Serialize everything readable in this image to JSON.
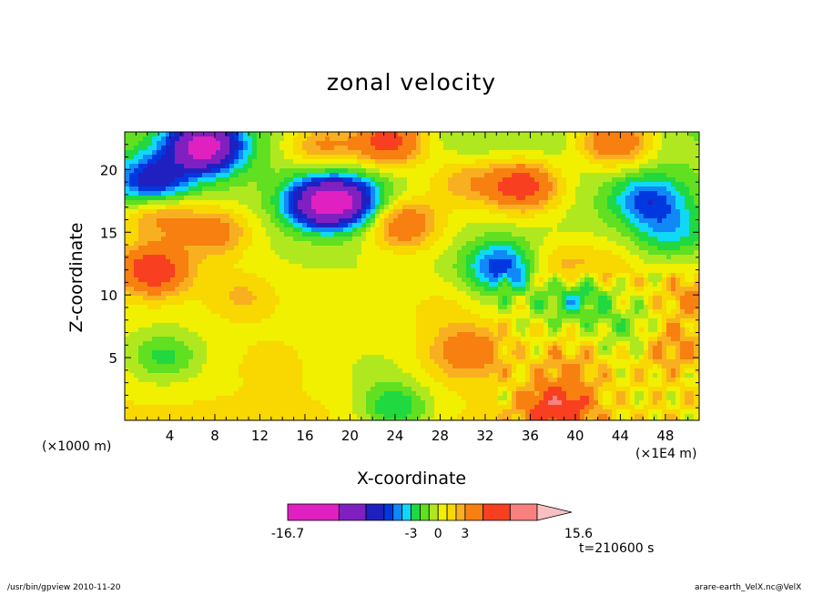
{
  "chart_data": {
    "type": "heatmap",
    "title": "zonal velocity",
    "xlabel": "X-coordinate",
    "ylabel": "Z-coordinate",
    "x_unit_label": "(×1000 m)",
    "x_scale_label": "(×1E4 m)",
    "time_label": "t=210600 s",
    "xlim": [
      0,
      51
    ],
    "ylim": [
      0,
      23
    ],
    "x_ticks": [
      4,
      8,
      12,
      16,
      20,
      24,
      28,
      32,
      36,
      40,
      44,
      48
    ],
    "y_ticks": [
      5,
      10,
      15,
      20
    ],
    "colorbar": {
      "levels": [
        -16.7,
        -11,
        -8,
        -6,
        -5,
        -4,
        -3,
        -2,
        -1,
        0,
        1,
        2,
        3,
        5,
        8,
        11,
        15.6
      ],
      "colors": [
        "#e020c0",
        "#8020c0",
        "#2020c0",
        "#0038e0",
        "#1088f8",
        "#10d8f8",
        "#20d840",
        "#60e020",
        "#b0e820",
        "#f0f000",
        "#f8d800",
        "#f8b020",
        "#f88010",
        "#f84020",
        "#f88080",
        "#f8c0c0"
      ],
      "tick_labels": [
        {
          "value": -16.7,
          "label": "-16.7"
        },
        {
          "value": -3,
          "label": "-3"
        },
        {
          "value": 0,
          "label": "0"
        },
        {
          "value": 3,
          "label": "3"
        },
        {
          "value": 15.6,
          "label": "15.6"
        }
      ]
    },
    "field_features": [
      {
        "x": 7,
        "z": 21.8,
        "u": -12
      },
      {
        "x": 2.5,
        "z": 19,
        "u": -7
      },
      {
        "x": 17.5,
        "z": 17.3,
        "u": -10
      },
      {
        "x": 20,
        "z": 17.5,
        "u": -6
      },
      {
        "x": 33.5,
        "z": 12.2,
        "u": -6
      },
      {
        "x": 40,
        "z": 10,
        "u": -4
      },
      {
        "x": 46.5,
        "z": 17.5,
        "u": -5
      },
      {
        "x": 48.5,
        "z": 15,
        "u": -3
      },
      {
        "x": 45,
        "z": 7,
        "u": -2
      },
      {
        "x": 3.5,
        "z": 5,
        "u": -3
      },
      {
        "x": 24,
        "z": 1,
        "u": -4
      },
      {
        "x": 36.5,
        "z": 1.2,
        "u": -2
      },
      {
        "x": 2.5,
        "z": 12,
        "u": 7
      },
      {
        "x": 3,
        "z": 16.5,
        "u": 4
      },
      {
        "x": 8,
        "z": 15,
        "u": 4
      },
      {
        "x": 23.5,
        "z": 22.3,
        "u": 7
      },
      {
        "x": 17.5,
        "z": 22,
        "u": 4
      },
      {
        "x": 24.8,
        "z": 15.7,
        "u": 5
      },
      {
        "x": 35.3,
        "z": 18.7,
        "u": 7
      },
      {
        "x": 43.5,
        "z": 22.3,
        "u": 6
      },
      {
        "x": 30,
        "z": 19,
        "u": 3
      },
      {
        "x": 30.5,
        "z": 5.5,
        "u": 4
      },
      {
        "x": 39.5,
        "z": 4.5,
        "u": 2
      },
      {
        "x": 48.5,
        "z": 6,
        "u": 3
      },
      {
        "x": 50.5,
        "z": 10,
        "u": 3
      },
      {
        "x": 10.5,
        "z": 10,
        "u": 2
      },
      {
        "x": 38.2,
        "z": 12,
        "u": 3
      },
      {
        "x": 42.5,
        "z": 12,
        "u": 2
      },
      {
        "x": 28,
        "z": 9,
        "u": 1
      },
      {
        "x": 13,
        "z": 5,
        "u": 0.6
      },
      {
        "x": 38,
        "z": 1,
        "u": 8
      },
      {
        "x": 22,
        "z": 4,
        "u": -1
      }
    ]
  },
  "footer": {
    "left": "/usr/bin/gpview   2010-11-20",
    "right": "arare-earth_VelX.nc@VelX"
  }
}
